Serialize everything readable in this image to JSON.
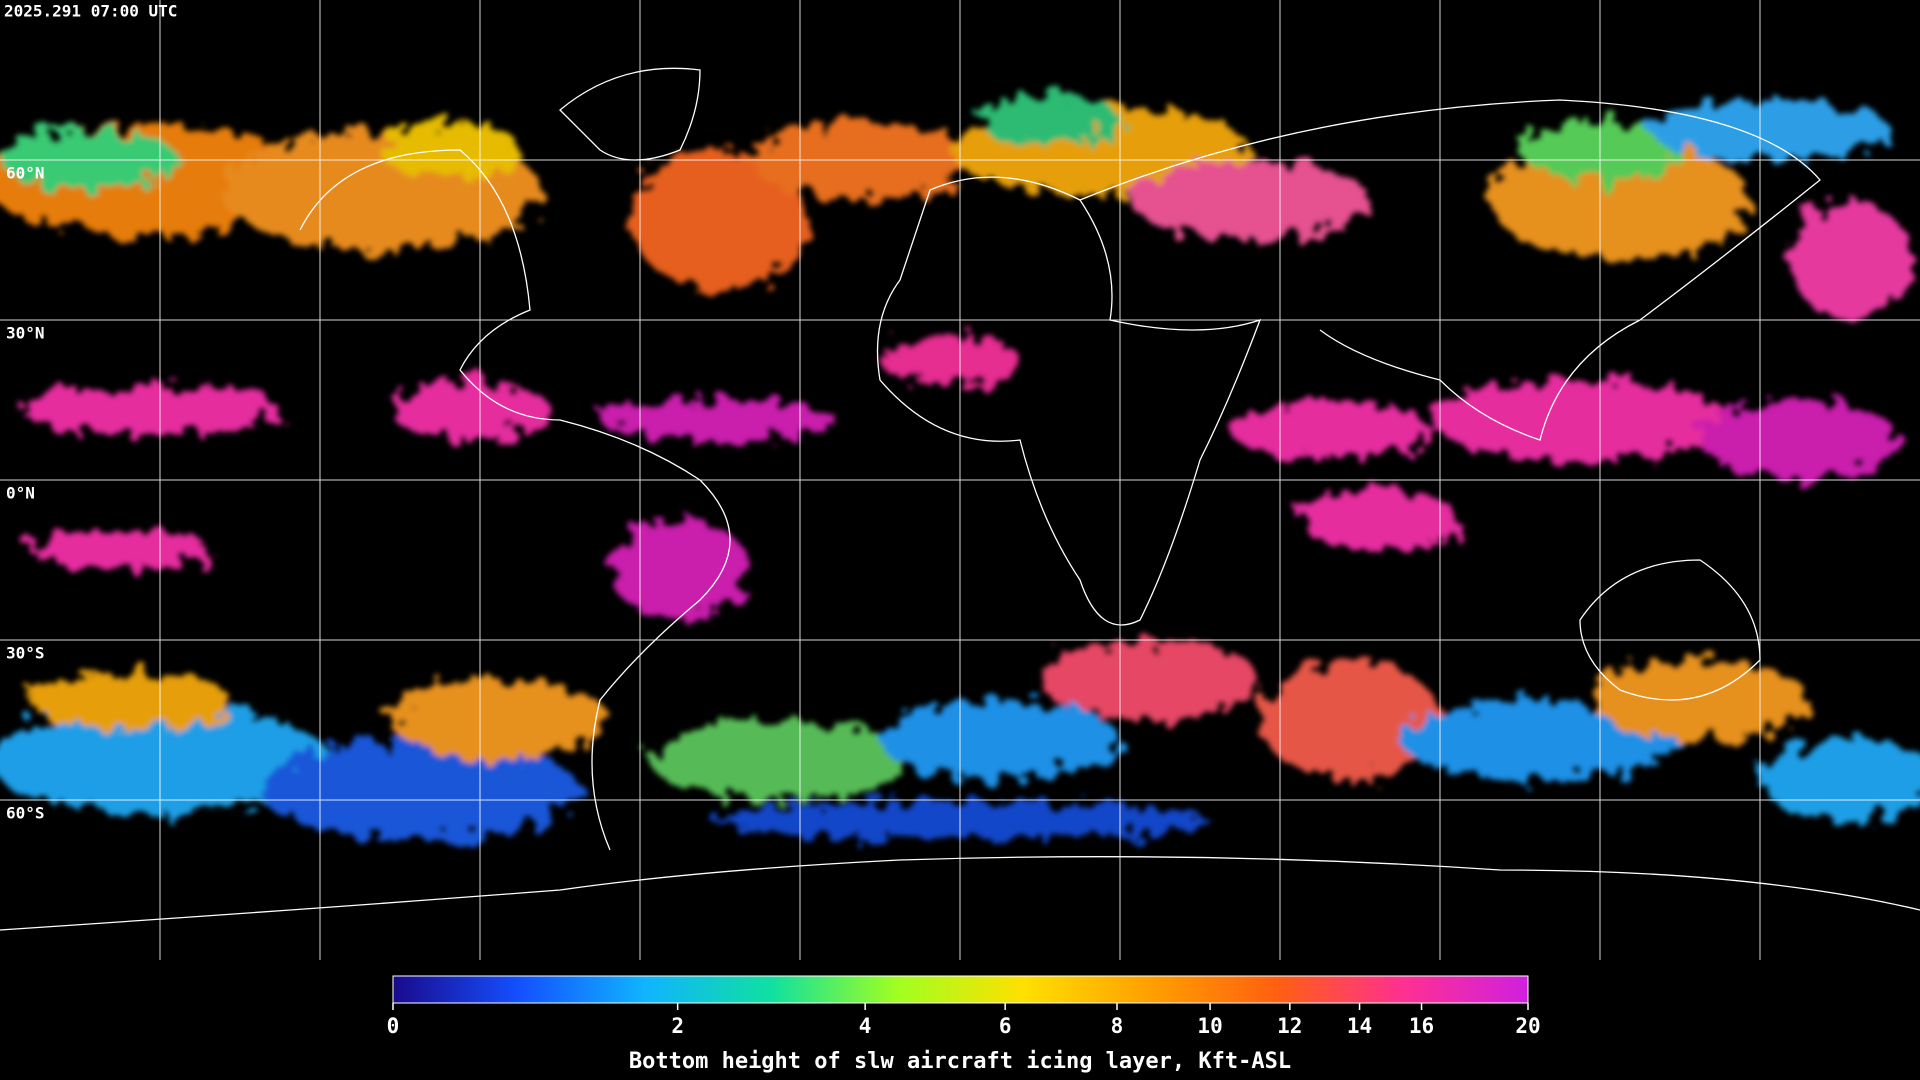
{
  "header": {
    "timestamp": "2025.291 07:00 UTC"
  },
  "map": {
    "latitude_lines": [
      {
        "value": 60,
        "label": "60°N"
      },
      {
        "value": 30,
        "label": "30°N"
      },
      {
        "value": 0,
        "label": "0°N"
      },
      {
        "value": -30,
        "label": "30°S"
      },
      {
        "value": -60,
        "label": "60°S"
      }
    ],
    "grid": true
  },
  "colorbar": {
    "title": "Bottom height of slw aircraft icing layer, Kft-ASL",
    "lim": [
      0,
      20
    ],
    "ticks": [
      0,
      2,
      4,
      6,
      8,
      10,
      12,
      14,
      16,
      20
    ],
    "colormap": [
      "#1a0a8c",
      "#1450ff",
      "#10b4ff",
      "#10e0a0",
      "#a0ff20",
      "#ffe000",
      "#ffa000",
      "#ff6010",
      "#ff3090",
      "#d020e0"
    ]
  }
}
